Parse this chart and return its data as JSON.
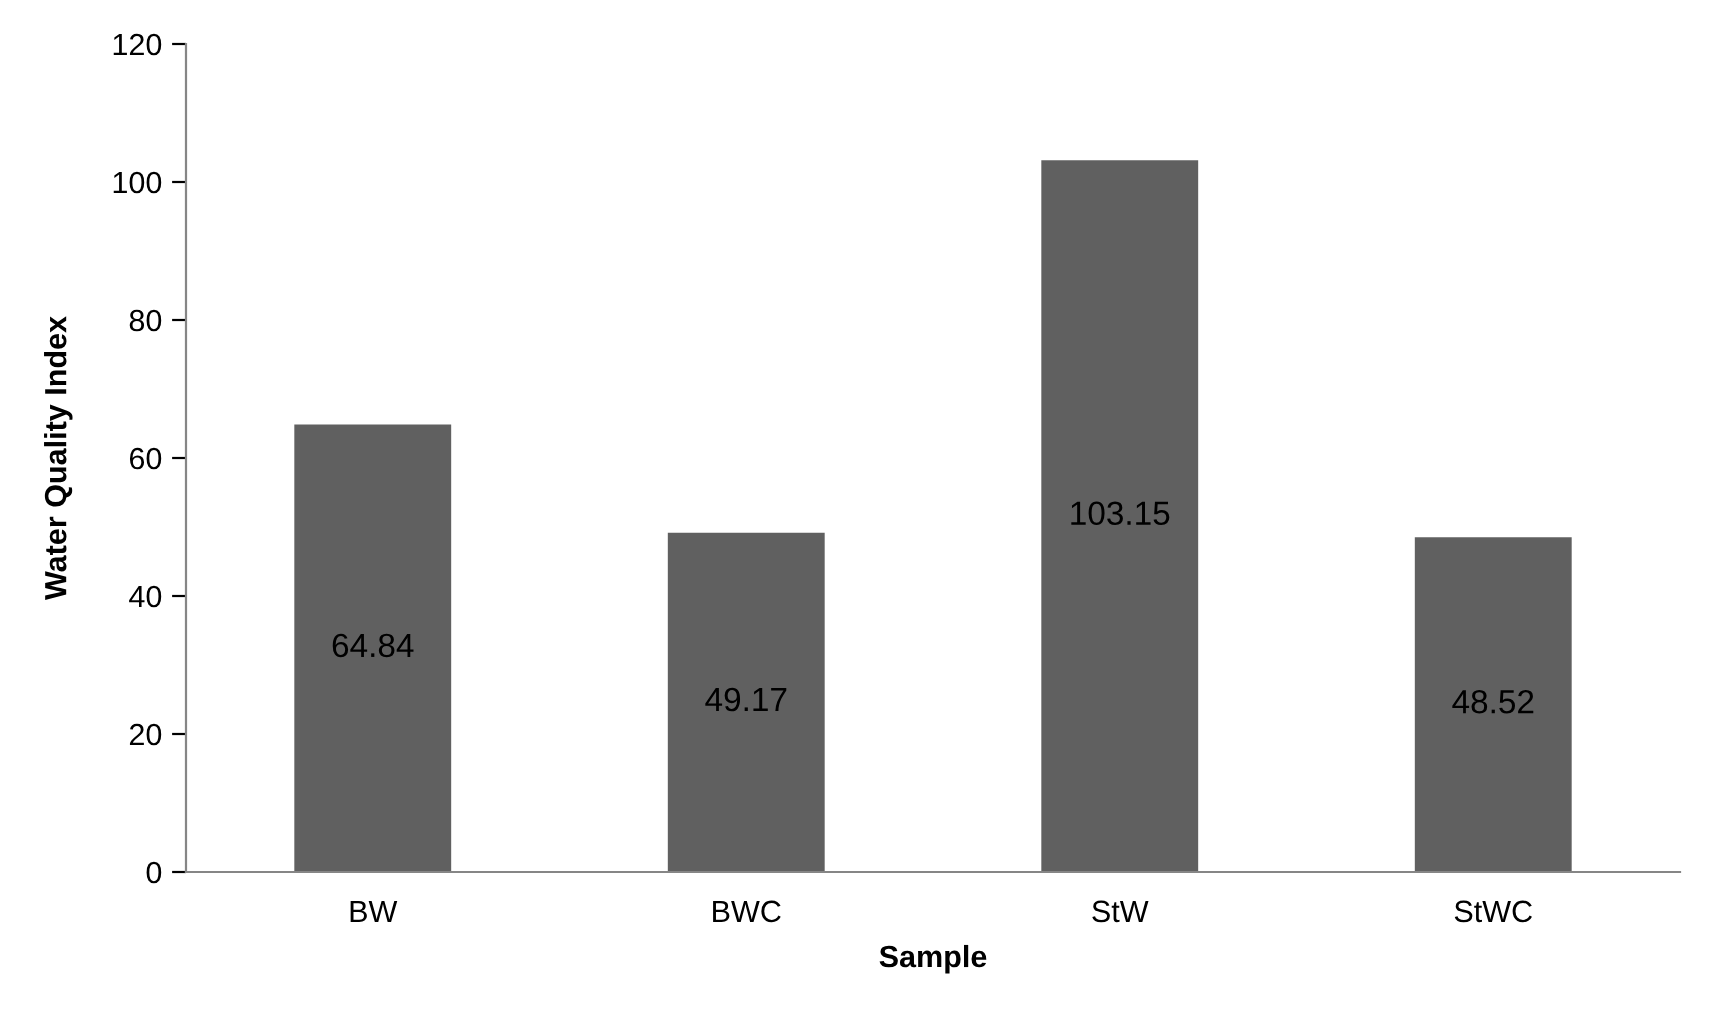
{
  "chart_data": {
    "type": "bar",
    "xlabel": "Sample",
    "ylabel": "Water Quality Index",
    "categories": [
      "BW",
      "BWC",
      "StW",
      "StWC"
    ],
    "values": [
      64.84,
      49.17,
      103.15,
      48.52
    ],
    "color": "#606060",
    "ylim": [
      0,
      120
    ],
    "yticks": [
      0,
      20,
      40,
      60,
      80,
      100,
      120
    ],
    "data_labels": true,
    "grid": false
  }
}
